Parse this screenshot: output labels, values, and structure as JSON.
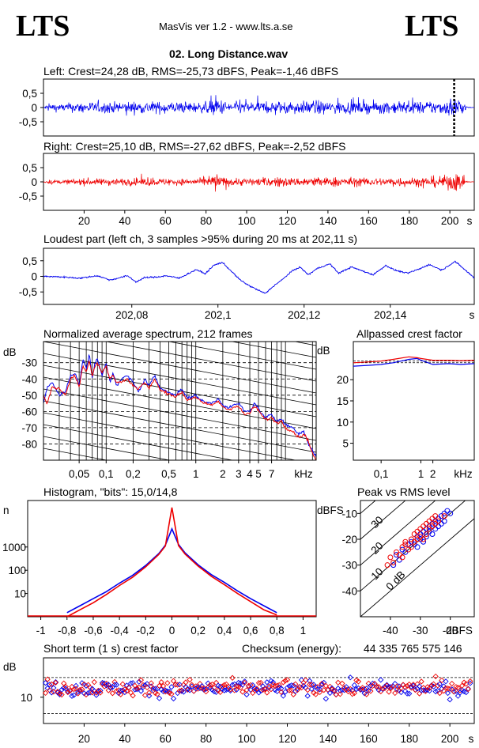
{
  "header": {
    "logo_left": "LTS",
    "logo_right": "LTS",
    "app_title": "MasVis ver 1.2 - www.lts.a.se",
    "file_name": "02. Long Distance.wav"
  },
  "colors": {
    "left": "#0000ee",
    "right": "#ee0000",
    "axis": "#000000",
    "grid": "#000000"
  },
  "chart_data": [
    {
      "id": "left_waveform",
      "type": "line",
      "title": "Left: Crest=24,28 dB, RMS=-25,73 dBFS, Peak=-1,46 dBFS",
      "series": [
        {
          "name": "Left",
          "color": "#0000ee"
        }
      ],
      "ylim": [
        -1,
        1
      ],
      "ytick_labels": [
        "0,5",
        "0",
        "-0,5"
      ],
      "yticks": [
        0.5,
        0,
        -0.5
      ],
      "xlim": [
        0,
        212
      ],
      "marker_x": 202.11,
      "envelope": [
        [
          0,
          0.05
        ],
        [
          3,
          0.28
        ],
        [
          8,
          0.2
        ],
        [
          12,
          0.26
        ],
        [
          17,
          0.3
        ],
        [
          22,
          0.35
        ],
        [
          27,
          0.28
        ],
        [
          32,
          0.34
        ],
        [
          37,
          0.3
        ],
        [
          42,
          0.36
        ],
        [
          47,
          0.32
        ],
        [
          52,
          0.38
        ],
        [
          57,
          0.33
        ],
        [
          62,
          0.37
        ],
        [
          67,
          0.3
        ],
        [
          72,
          0.33
        ],
        [
          77,
          0.29
        ],
        [
          82,
          0.38
        ],
        [
          85,
          0.72
        ],
        [
          88,
          0.4
        ],
        [
          93,
          0.32
        ],
        [
          98,
          0.36
        ],
        [
          103,
          0.34
        ],
        [
          108,
          0.33
        ],
        [
          113,
          0.35
        ],
        [
          118,
          0.4
        ],
        [
          123,
          0.32
        ],
        [
          128,
          0.36
        ],
        [
          133,
          0.44
        ],
        [
          138,
          0.34
        ],
        [
          143,
          0.38
        ],
        [
          148,
          0.35
        ],
        [
          153,
          0.36
        ],
        [
          158,
          0.32
        ],
        [
          163,
          0.36
        ],
        [
          168,
          0.33
        ],
        [
          173,
          0.38
        ],
        [
          178,
          0.37
        ],
        [
          183,
          0.34
        ],
        [
          188,
          0.36
        ],
        [
          193,
          0.38
        ],
        [
          198,
          0.42
        ],
        [
          201,
          0.62
        ],
        [
          203,
          0.7
        ],
        [
          205,
          0.58
        ],
        [
          207,
          0.25
        ],
        [
          209,
          0.05
        ],
        [
          212,
          0.0
        ]
      ]
    },
    {
      "id": "right_waveform",
      "type": "line",
      "title": "Right: Crest=25,10 dB, RMS=-27,62 dBFS, Peak=-2,52 dBFS",
      "series": [
        {
          "name": "Right",
          "color": "#ee0000"
        }
      ],
      "ylim": [
        -1,
        1
      ],
      "ytick_labels": [
        "0,5",
        "0",
        "-0,5"
      ],
      "yticks": [
        0.5,
        0,
        -0.5
      ],
      "xlim": [
        0,
        212
      ],
      "xtick_labels": [
        "20",
        "40",
        "60",
        "80",
        "100",
        "120",
        "140",
        "160",
        "180",
        "200",
        "s"
      ],
      "xticks": [
        20,
        40,
        60,
        80,
        100,
        120,
        140,
        160,
        180,
        200
      ],
      "envelope": [
        [
          0,
          0.02
        ],
        [
          3,
          0.12
        ],
        [
          8,
          0.1
        ],
        [
          12,
          0.14
        ],
        [
          17,
          0.18
        ],
        [
          22,
          0.22
        ],
        [
          27,
          0.18
        ],
        [
          32,
          0.22
        ],
        [
          37,
          0.2
        ],
        [
          42,
          0.22
        ],
        [
          47,
          0.2
        ],
        [
          52,
          0.24
        ],
        [
          57,
          0.2
        ],
        [
          62,
          0.22
        ],
        [
          67,
          0.18
        ],
        [
          72,
          0.2
        ],
        [
          77,
          0.18
        ],
        [
          82,
          0.3
        ],
        [
          85,
          0.55
        ],
        [
          88,
          0.28
        ],
        [
          93,
          0.22
        ],
        [
          98,
          0.24
        ],
        [
          103,
          0.22
        ],
        [
          108,
          0.25
        ],
        [
          113,
          0.26
        ],
        [
          118,
          0.3
        ],
        [
          123,
          0.22
        ],
        [
          128,
          0.26
        ],
        [
          133,
          0.34
        ],
        [
          138,
          0.24
        ],
        [
          143,
          0.3
        ],
        [
          148,
          0.24
        ],
        [
          153,
          0.28
        ],
        [
          158,
          0.22
        ],
        [
          163,
          0.26
        ],
        [
          168,
          0.22
        ],
        [
          173,
          0.3
        ],
        [
          178,
          0.28
        ],
        [
          183,
          0.24
        ],
        [
          188,
          0.3
        ],
        [
          193,
          0.34
        ],
        [
          198,
          0.36
        ],
        [
          201,
          0.55
        ],
        [
          203,
          0.62
        ],
        [
          205,
          0.45
        ],
        [
          207,
          0.18
        ],
        [
          209,
          0.03
        ],
        [
          212,
          0.0
        ]
      ]
    },
    {
      "id": "loudest_part",
      "type": "line",
      "title": "Loudest part (left  ch, 3 samples >95% during 20 ms at 202,11 s)",
      "series": [
        {
          "name": "Left",
          "color": "#0000ee"
        }
      ],
      "ylim": [
        -0.9,
        0.9
      ],
      "ytick_labels": [
        "0,5",
        "0",
        "-0,5"
      ],
      "yticks": [
        0.5,
        0,
        -0.5
      ],
      "xlim": [
        202.0595,
        202.1595
      ],
      "xtick_labels": [
        "202,08",
        "202,1",
        "202,12",
        "202,14",
        "s"
      ],
      "xticks": [
        202.08,
        202.1,
        202.12,
        202.14
      ],
      "x": [
        202.0595,
        202.064,
        202.068,
        202.072,
        202.075,
        202.077,
        202.079,
        202.081,
        202.083,
        202.086,
        202.088,
        202.091,
        202.093,
        202.095,
        202.097,
        202.099,
        202.101,
        202.103,
        202.105,
        202.107,
        202.109,
        202.111,
        202.113,
        202.115,
        202.117,
        202.119,
        202.121,
        202.123,
        202.126,
        202.128,
        202.131,
        202.133,
        202.136,
        202.139,
        202.141,
        202.144,
        202.147,
        202.149,
        202.152,
        202.155,
        202.157,
        202.1595
      ],
      "y": [
        0.0,
        -0.02,
        -0.06,
        0.02,
        -0.12,
        -0.05,
        0.02,
        -0.18,
        -0.04,
        -0.02,
        0.02,
        -0.06,
        0.08,
        0.22,
        0.08,
        0.35,
        0.45,
        0.18,
        -0.1,
        -0.28,
        -0.42,
        -0.55,
        -0.3,
        -0.1,
        0.15,
        0.3,
        0.05,
        0.25,
        0.4,
        0.1,
        0.3,
        0.2,
        0.05,
        0.35,
        0.2,
        0.1,
        0.25,
        0.38,
        0.2,
        0.48,
        0.25,
        -0.05
      ]
    },
    {
      "id": "spectrum",
      "type": "line",
      "title": "Normalized average spectrum, 212 frames",
      "yunit": "dB",
      "xunit": "kHz",
      "series": [
        {
          "name": "Left",
          "color": "#0000ee"
        },
        {
          "name": "Right",
          "color": "#ee0000"
        }
      ],
      "ylim": [
        -90,
        -17
      ],
      "ytick_labels": [
        "-30",
        "-40",
        "-50",
        "-60",
        "-70",
        "-80"
      ],
      "yticks": [
        -30,
        -40,
        -50,
        -60,
        -70,
        -80
      ],
      "xlim": [
        0.02,
        22
      ],
      "x_scale": "log",
      "xtick_labels": [
        "0,05",
        "0,1",
        "0,2",
        "0,5",
        "1",
        "2",
        "3",
        "4",
        "5",
        "7",
        "kHz"
      ],
      "xticks": [
        0.05,
        0.1,
        0.2,
        0.5,
        1,
        2,
        3,
        4,
        5,
        7
      ],
      "x": [
        0.02,
        0.022,
        0.025,
        0.03,
        0.035,
        0.04,
        0.045,
        0.05,
        0.055,
        0.06,
        0.065,
        0.07,
        0.075,
        0.08,
        0.09,
        0.1,
        0.11,
        0.12,
        0.13,
        0.15,
        0.17,
        0.2,
        0.23,
        0.27,
        0.3,
        0.35,
        0.4,
        0.5,
        0.6,
        0.7,
        0.8,
        1,
        1.2,
        1.5,
        1.8,
        2,
        2.3,
        2.7,
        3,
        3.5,
        4,
        4.5,
        5,
        5.5,
        6,
        7,
        8,
        9,
        10,
        12,
        14,
        16,
        18,
        20,
        22
      ],
      "y_left": [
        -55,
        -45,
        -42,
        -50,
        -48,
        -38,
        -36,
        -44,
        -28,
        -34,
        -24,
        -40,
        -30,
        -28,
        -38,
        -30,
        -42,
        -36,
        -44,
        -40,
        -38,
        -42,
        -48,
        -40,
        -44,
        -38,
        -46,
        -48,
        -50,
        -46,
        -52,
        -50,
        -54,
        -55,
        -52,
        -56,
        -58,
        -56,
        -55,
        -60,
        -60,
        -55,
        -58,
        -62,
        -64,
        -62,
        -66,
        -64,
        -68,
        -70,
        -74,
        -72,
        -80,
        -84,
        -88
      ],
      "y_right": [
        -50,
        -55,
        -45,
        -46,
        -50,
        -40,
        -38,
        -45,
        -32,
        -36,
        -28,
        -38,
        -32,
        -30,
        -36,
        -32,
        -40,
        -38,
        -42,
        -42,
        -40,
        -44,
        -46,
        -42,
        -46,
        -40,
        -47,
        -49,
        -51,
        -48,
        -53,
        -51,
        -55,
        -56,
        -54,
        -57,
        -59,
        -57,
        -57,
        -62,
        -61,
        -57,
        -59,
        -63,
        -65,
        -64,
        -67,
        -66,
        -70,
        -72,
        -76,
        -74,
        -78,
        -86,
        -90
      ]
    },
    {
      "id": "allpassed_crest",
      "type": "line",
      "title": "Allpassed crest factor",
      "yunit": "dB",
      "xunit": "kHz",
      "series": [
        {
          "name": "Left",
          "color": "#0000ee"
        },
        {
          "name": "Right",
          "color": "#ee0000"
        }
      ],
      "ylim": [
        1,
        29
      ],
      "ytick_labels": [
        "20",
        "15",
        "10",
        "5"
      ],
      "yticks": [
        20,
        15,
        10,
        5
      ],
      "xlim": [
        0.02,
        22
      ],
      "x_scale": "log",
      "xtick_labels": [
        "0,1",
        "1",
        "2",
        "kHz"
      ],
      "xticks": [
        0.1,
        1,
        2
      ],
      "x": [
        0.02,
        0.05,
        0.1,
        0.2,
        0.5,
        0.8,
        1,
        2,
        5,
        10,
        22
      ],
      "y_left": [
        23.2,
        23.4,
        23.6,
        24.0,
        24.8,
        25.0,
        24.6,
        23.6,
        23.8,
        23.6,
        23.8
      ],
      "y_right": [
        24.0,
        24.2,
        24.4,
        24.8,
        25.4,
        25.2,
        25.0,
        24.6,
        24.6,
        24.5,
        24.6
      ],
      "reference_dashed": [
        24.0,
        24.4
      ]
    },
    {
      "id": "histogram",
      "type": "line",
      "title": "Histogram, \"bits\": 15,0/14,8",
      "yunit": "n",
      "series": [
        {
          "name": "Left",
          "color": "#0000ee"
        },
        {
          "name": "Right",
          "color": "#ee0000"
        }
      ],
      "y_scale": "log",
      "ylim": [
        1,
        100000
      ],
      "ytick_labels": [
        "1000",
        "100",
        "10"
      ],
      "yticks": [
        1000,
        100,
        10
      ],
      "xlim": [
        -1.1,
        1.1
      ],
      "xtick_labels": [
        "-1",
        "-0,8",
        "-0,6",
        "-0,4",
        "-0,2",
        "0",
        "0,2",
        "0,4",
        "0,6",
        "0,8",
        "1"
      ],
      "xticks": [
        -1,
        -0.8,
        -0.6,
        -0.4,
        -0.2,
        0,
        0.2,
        0.4,
        0.6,
        0.8,
        1
      ],
      "x": [
        -0.8,
        -0.7,
        -0.6,
        -0.5,
        -0.4,
        -0.3,
        -0.2,
        -0.1,
        -0.05,
        0,
        0.05,
        0.1,
        0.2,
        0.3,
        0.4,
        0.5,
        0.6,
        0.7,
        0.8
      ],
      "y_left": [
        1.5,
        3,
        6,
        12,
        28,
        60,
        160,
        520,
        1200,
        6000,
        1300,
        560,
        170,
        65,
        30,
        13,
        6,
        3,
        1.5
      ],
      "y_right": [
        1,
        2,
        4,
        9,
        22,
        50,
        140,
        480,
        1100,
        50000,
        1150,
        500,
        150,
        55,
        24,
        10,
        4.5,
        2,
        1.2
      ]
    },
    {
      "id": "peak_vs_rms",
      "type": "scatter",
      "title": "Peak vs RMS level",
      "yunit": "dBFS",
      "xunit": "dBFS",
      "series": [
        {
          "name": "Left",
          "color": "#0000ee"
        },
        {
          "name": "Right",
          "color": "#ee0000"
        }
      ],
      "xlim": [
        -50,
        -12
      ],
      "ylim": [
        -50,
        -5
      ],
      "xtick_labels": [
        "-40",
        "-30",
        "-20",
        "dBFS"
      ],
      "xticks": [
        -40,
        -30,
        -20
      ],
      "ytick_labels": [
        "-10",
        "-20",
        "-30",
        "-40"
      ],
      "yticks": [
        -10,
        -20,
        -30,
        -40
      ],
      "crest_line_labels": [
        "40",
        "30",
        "20",
        "10",
        "0 dB"
      ],
      "crest_lines_db": [
        40,
        30,
        20,
        10,
        0
      ],
      "points_left": [
        [
          -38,
          -26
        ],
        [
          -36,
          -24
        ],
        [
          -34,
          -22
        ],
        [
          -33,
          -21
        ],
        [
          -31,
          -19
        ],
        [
          -30,
          -18
        ],
        [
          -29,
          -17
        ],
        [
          -28,
          -16
        ],
        [
          -27,
          -15
        ],
        [
          -26,
          -14
        ],
        [
          -25,
          -13
        ],
        [
          -24,
          -12
        ],
        [
          -23,
          -11
        ],
        [
          -22,
          -10
        ],
        [
          -21,
          -9
        ],
        [
          -32,
          -22
        ],
        [
          -30,
          -20
        ],
        [
          -28,
          -19
        ],
        [
          -26,
          -18
        ],
        [
          -24,
          -15
        ],
        [
          -22,
          -13
        ],
        [
          -35,
          -25
        ],
        [
          -37,
          -28
        ],
        [
          -39,
          -30
        ],
        [
          -27,
          -17
        ],
        [
          -25,
          -16
        ],
        [
          -23,
          -14
        ],
        [
          -29,
          -21
        ],
        [
          -31,
          -23
        ],
        [
          -20,
          -10
        ]
      ],
      "points_right": [
        [
          -40,
          -27
        ],
        [
          -38,
          -25
        ],
        [
          -36,
          -23
        ],
        [
          -35,
          -21
        ],
        [
          -33,
          -20
        ],
        [
          -32,
          -18
        ],
        [
          -31,
          -17
        ],
        [
          -30,
          -16
        ],
        [
          -29,
          -15
        ],
        [
          -28,
          -14
        ],
        [
          -27,
          -13
        ],
        [
          -26,
          -12
        ],
        [
          -25,
          -11
        ],
        [
          -34,
          -24
        ],
        [
          -32,
          -21
        ],
        [
          -30,
          -19
        ],
        [
          -28,
          -18
        ],
        [
          -26,
          -15
        ],
        [
          -24,
          -13
        ],
        [
          -37,
          -26
        ],
        [
          -39,
          -29
        ],
        [
          -29,
          -20
        ],
        [
          -27,
          -16
        ],
        [
          -25,
          -14
        ],
        [
          -33,
          -23
        ],
        [
          -35,
          -22
        ],
        [
          -31,
          -20
        ],
        [
          -22,
          -11
        ],
        [
          -41,
          -30
        ],
        [
          -36,
          -27
        ]
      ]
    },
    {
      "id": "short_term_crest",
      "type": "scatter",
      "title": "Short term (1 s) crest factor",
      "yunit": "dB",
      "checksum_label": "Checksum (energy):",
      "checksum_value": "44 335 765 575 146",
      "series": [
        {
          "name": "Left",
          "color": "#0000ee"
        },
        {
          "name": "Right",
          "color": "#ee0000"
        }
      ],
      "xlim": [
        0,
        212
      ],
      "ylim": [
        2,
        22
      ],
      "ytick_labels": [
        "10"
      ],
      "yticks": [
        10
      ],
      "reference_dashed": [
        5,
        16
      ],
      "xtick_labels": [
        "20",
        "40",
        "60",
        "80",
        "100",
        "120",
        "140",
        "160",
        "180",
        "200",
        "s"
      ],
      "xticks": [
        20,
        40,
        60,
        80,
        100,
        120,
        140,
        160,
        180,
        200
      ],
      "mean_left": 12.6,
      "mean_right": 12.9,
      "spread": 2.8
    }
  ]
}
